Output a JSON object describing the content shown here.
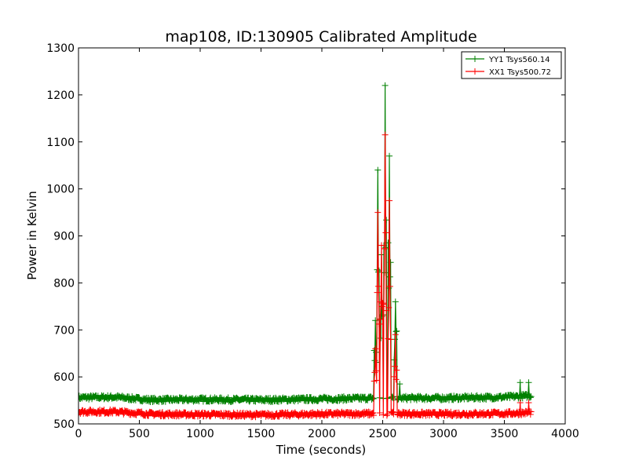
{
  "chart_data": {
    "type": "line",
    "title": "map108, ID:130905 Calibrated Amplitude",
    "xlabel": "Time (seconds)",
    "ylabel": "Power in Kelvin",
    "xlim": [
      0,
      4000
    ],
    "ylim": [
      500,
      1300
    ],
    "xticks": [
      0,
      500,
      1000,
      1500,
      2000,
      2500,
      3000,
      3500,
      4000
    ],
    "yticks": [
      500,
      600,
      700,
      800,
      900,
      1000,
      1100,
      1200,
      1300
    ],
    "grid": false,
    "legend_position": "top-right",
    "marker": "+",
    "series": [
      {
        "name": "YY1 Tsys560.14",
        "color": "#008000",
        "x_range": [
          0,
          3720
        ],
        "baseline": [
          [
            0,
            556
          ],
          [
            300,
            557
          ],
          [
            600,
            551
          ],
          [
            1000,
            552
          ],
          [
            1500,
            551
          ],
          [
            2000,
            553
          ],
          [
            2500,
            555
          ],
          [
            3000,
            555
          ],
          [
            3500,
            557
          ],
          [
            3720,
            560
          ]
        ],
        "spikes": [
          {
            "x": 2440,
            "y": 720
          },
          {
            "x": 2460,
            "y": 1040
          },
          {
            "x": 2490,
            "y": 860
          },
          {
            "x": 2520,
            "y": 1220
          },
          {
            "x": 2555,
            "y": 1070
          },
          {
            "x": 2605,
            "y": 760
          },
          {
            "x": 2640,
            "y": 585
          },
          {
            "x": 3630,
            "y": 588
          },
          {
            "x": 3700,
            "y": 588
          }
        ]
      },
      {
        "name": "XX1 Tsys500.72",
        "color": "#ff0000",
        "x_range": [
          0,
          3720
        ],
        "baseline": [
          [
            0,
            526
          ],
          [
            300,
            526
          ],
          [
            600,
            521
          ],
          [
            1000,
            520
          ],
          [
            1500,
            519
          ],
          [
            2000,
            521
          ],
          [
            2500,
            522
          ],
          [
            3000,
            521
          ],
          [
            3500,
            522
          ],
          [
            3720,
            524
          ]
        ],
        "spikes": [
          {
            "x": 2440,
            "y": 660
          },
          {
            "x": 2460,
            "y": 950
          },
          {
            "x": 2490,
            "y": 880
          },
          {
            "x": 2520,
            "y": 1115
          },
          {
            "x": 2555,
            "y": 975
          },
          {
            "x": 2605,
            "y": 690
          },
          {
            "x": 3630,
            "y": 545
          },
          {
            "x": 3700,
            "y": 545
          }
        ]
      }
    ]
  }
}
